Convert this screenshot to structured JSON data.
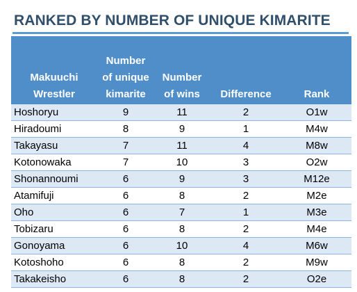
{
  "title": "RANKED BY NUMBER OF UNIQUE KIMARITE",
  "colors": {
    "header_bg": "#4f8ec9",
    "stripe": "#dce9f5",
    "title": "#2f4f6b",
    "rule": "#5b9bd5"
  },
  "table": {
    "headers": [
      {
        "lines": [
          "Makuuchi",
          "Wrestler"
        ]
      },
      {
        "lines": [
          "Number",
          "of unique",
          "kimarite"
        ]
      },
      {
        "lines": [
          "Number",
          "of wins"
        ]
      },
      {
        "lines": [
          "Difference"
        ]
      },
      {
        "lines": [
          "Rank"
        ]
      }
    ],
    "rows": [
      {
        "wrestler": "Hoshoryu",
        "unique": "9",
        "wins": "11",
        "difference": "2",
        "rank": "O1w"
      },
      {
        "wrestler": "Hiradoumi",
        "unique": "8",
        "wins": "9",
        "difference": "1",
        "rank": "M4w"
      },
      {
        "wrestler": "Takayasu",
        "unique": "7",
        "wins": "11",
        "difference": "4",
        "rank": "M8w"
      },
      {
        "wrestler": "Kotonowaka",
        "unique": "7",
        "wins": "10",
        "difference": "3",
        "rank": "O2w"
      },
      {
        "wrestler": "Shonannoumi",
        "unique": "6",
        "wins": "9",
        "difference": "3",
        "rank": "M12e"
      },
      {
        "wrestler": "Atamifuji",
        "unique": "6",
        "wins": "8",
        "difference": "2",
        "rank": "M2e"
      },
      {
        "wrestler": "Oho",
        "unique": "6",
        "wins": "7",
        "difference": "1",
        "rank": "M3e"
      },
      {
        "wrestler": "Tobizaru",
        "unique": "6",
        "wins": "8",
        "difference": "2",
        "rank": "M4e"
      },
      {
        "wrestler": "Gonoyama",
        "unique": "6",
        "wins": "10",
        "difference": "4",
        "rank": "M6w"
      },
      {
        "wrestler": "Kotoshoho",
        "unique": "6",
        "wins": "8",
        "difference": "2",
        "rank": "M9w"
      },
      {
        "wrestler": "Takakeisho",
        "unique": "6",
        "wins": "8",
        "difference": "2",
        "rank": "O2e"
      }
    ]
  }
}
